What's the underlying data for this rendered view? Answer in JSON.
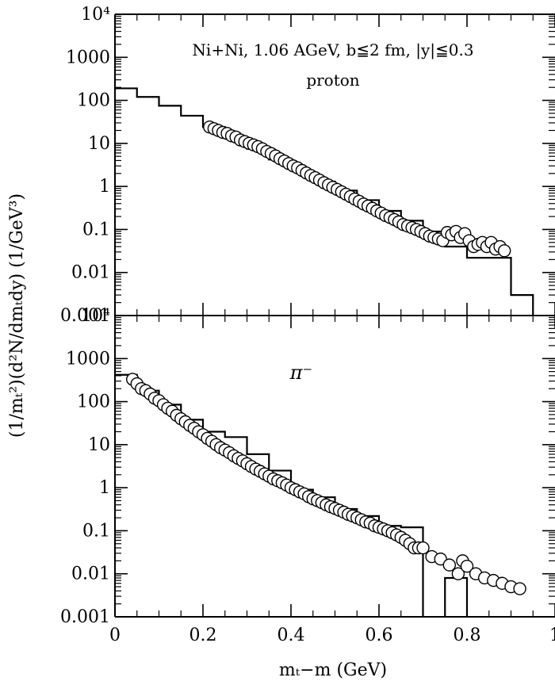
{
  "chart_data": [
    {
      "type": "scatter",
      "panel": "top",
      "annotation_line1": "Ni+Ni, 1.06 AGeV, b≦2 fm, |y|≦0.3",
      "annotation_line2": "proton",
      "xlim": [
        0,
        1.0
      ],
      "ylim": [
        0.001,
        10000
      ],
      "yscale": "log",
      "ytick_labels": [
        "0.001",
        "0.01",
        "0.1",
        "1",
        "10",
        "100",
        "1000",
        "10⁴"
      ],
      "histogram": {
        "edges": [
          0,
          0.05,
          0.1,
          0.15,
          0.2,
          0.25,
          0.3,
          0.35,
          0.4,
          0.45,
          0.5,
          0.55,
          0.6,
          0.65,
          0.7,
          0.75,
          0.8,
          0.85,
          0.9,
          0.95
        ],
        "values": [
          190,
          120,
          75,
          44,
          24,
          13,
          7.5,
          4.2,
          2.3,
          1.3,
          0.8,
          0.48,
          0.27,
          0.16,
          0.09,
          0.04,
          0.022,
          0.022,
          0.003
        ]
      },
      "points": {
        "x": [
          0.215,
          0.225,
          0.235,
          0.245,
          0.255,
          0.265,
          0.275,
          0.285,
          0.295,
          0.305,
          0.315,
          0.325,
          0.335,
          0.345,
          0.355,
          0.365,
          0.375,
          0.385,
          0.395,
          0.405,
          0.415,
          0.425,
          0.435,
          0.445,
          0.455,
          0.465,
          0.475,
          0.485,
          0.495,
          0.505,
          0.515,
          0.525,
          0.535,
          0.545,
          0.555,
          0.565,
          0.575,
          0.585,
          0.595,
          0.605,
          0.615,
          0.625,
          0.635,
          0.645,
          0.655,
          0.665,
          0.675,
          0.685,
          0.695,
          0.705,
          0.715,
          0.725,
          0.735,
          0.745,
          0.755,
          0.765,
          0.775,
          0.785,
          0.795,
          0.805,
          0.815,
          0.825,
          0.835,
          0.845,
          0.855,
          0.865,
          0.875,
          0.885
        ],
        "y": [
          24,
          22,
          20,
          18,
          17,
          15,
          14,
          12,
          11,
          10,
          9.2,
          8.4,
          7.5,
          6.5,
          5.8,
          5.1,
          4.4,
          3.9,
          3.4,
          3.0,
          2.7,
          2.35,
          2.05,
          1.8,
          1.6,
          1.4,
          1.22,
          1.08,
          0.95,
          0.85,
          0.75,
          0.66,
          0.58,
          0.51,
          0.45,
          0.39,
          0.35,
          0.31,
          0.27,
          0.24,
          0.21,
          0.19,
          0.17,
          0.15,
          0.13,
          0.12,
          0.11,
          0.1,
          0.09,
          0.08,
          0.07,
          0.065,
          0.06,
          0.055,
          0.085,
          0.075,
          0.09,
          0.065,
          0.08,
          0.055,
          0.04,
          0.045,
          0.05,
          0.04,
          0.05,
          0.035,
          0.04,
          0.032
        ]
      }
    },
    {
      "type": "scatter",
      "panel": "bottom",
      "annotation_line1": "π⁻",
      "xlabel": "mₜ−m (GeV)",
      "ylabel": "(1/mₜ²)(d²N/dmₜdy) (1/GeV³)",
      "xlim": [
        0,
        1.0
      ],
      "ylim": [
        0.001,
        10000
      ],
      "yscale": "log",
      "xtick_labels": [
        "0",
        "0.2",
        "0.4",
        "0.6",
        "0.8",
        "1"
      ],
      "ytick_labels": [
        "0.001",
        "0.01",
        "0.1",
        "1",
        "10",
        "100",
        "1000",
        "10⁴"
      ],
      "histogram": {
        "edges": [
          0,
          0.05,
          0.1,
          0.15,
          0.2,
          0.25,
          0.3,
          0.35,
          0.4,
          0.45,
          0.5,
          0.55,
          0.6,
          0.65,
          0.7
        ],
        "values": [
          420,
          180,
          85,
          38,
          20,
          15,
          6,
          2.5,
          0.9,
          0.6,
          0.32,
          0.22,
          0.13,
          0.12
        ]
      },
      "spike": {
        "x0": 0.75,
        "x1": 0.8,
        "value": 0.008
      },
      "points": {
        "x": [
          0.04,
          0.05,
          0.06,
          0.07,
          0.08,
          0.09,
          0.1,
          0.11,
          0.12,
          0.13,
          0.14,
          0.15,
          0.16,
          0.17,
          0.18,
          0.19,
          0.2,
          0.21,
          0.22,
          0.23,
          0.24,
          0.25,
          0.26,
          0.27,
          0.28,
          0.29,
          0.3,
          0.31,
          0.32,
          0.33,
          0.34,
          0.35,
          0.36,
          0.37,
          0.38,
          0.39,
          0.4,
          0.41,
          0.42,
          0.43,
          0.44,
          0.45,
          0.46,
          0.47,
          0.48,
          0.49,
          0.5,
          0.51,
          0.52,
          0.53,
          0.54,
          0.55,
          0.56,
          0.57,
          0.58,
          0.59,
          0.6,
          0.61,
          0.62,
          0.63,
          0.64,
          0.65,
          0.66,
          0.67,
          0.68,
          0.69,
          0.7,
          0.72,
          0.74,
          0.76,
          0.78,
          0.79,
          0.8,
          0.82,
          0.84,
          0.86,
          0.88,
          0.9,
          0.92
        ],
        "y": [
          330,
          260,
          200,
          180,
          150,
          120,
          105,
          85,
          70,
          60,
          48,
          40,
          34,
          28,
          24,
          20,
          17,
          14,
          12,
          10,
          8.5,
          7.5,
          6.5,
          5.5,
          4.8,
          4.2,
          3.6,
          3.1,
          2.7,
          2.4,
          2.1,
          1.85,
          1.6,
          1.45,
          1.3,
          1.15,
          1.0,
          0.9,
          0.8,
          0.72,
          0.62,
          0.55,
          0.5,
          0.45,
          0.4,
          0.36,
          0.33,
          0.3,
          0.27,
          0.24,
          0.22,
          0.2,
          0.18,
          0.16,
          0.15,
          0.13,
          0.12,
          0.11,
          0.1,
          0.09,
          0.08,
          0.07,
          0.06,
          0.05,
          0.04,
          0.04,
          0.04,
          0.025,
          0.022,
          0.016,
          0.01,
          0.02,
          0.015,
          0.01,
          0.008,
          0.007,
          0.006,
          0.005,
          0.0045
        ]
      }
    }
  ]
}
